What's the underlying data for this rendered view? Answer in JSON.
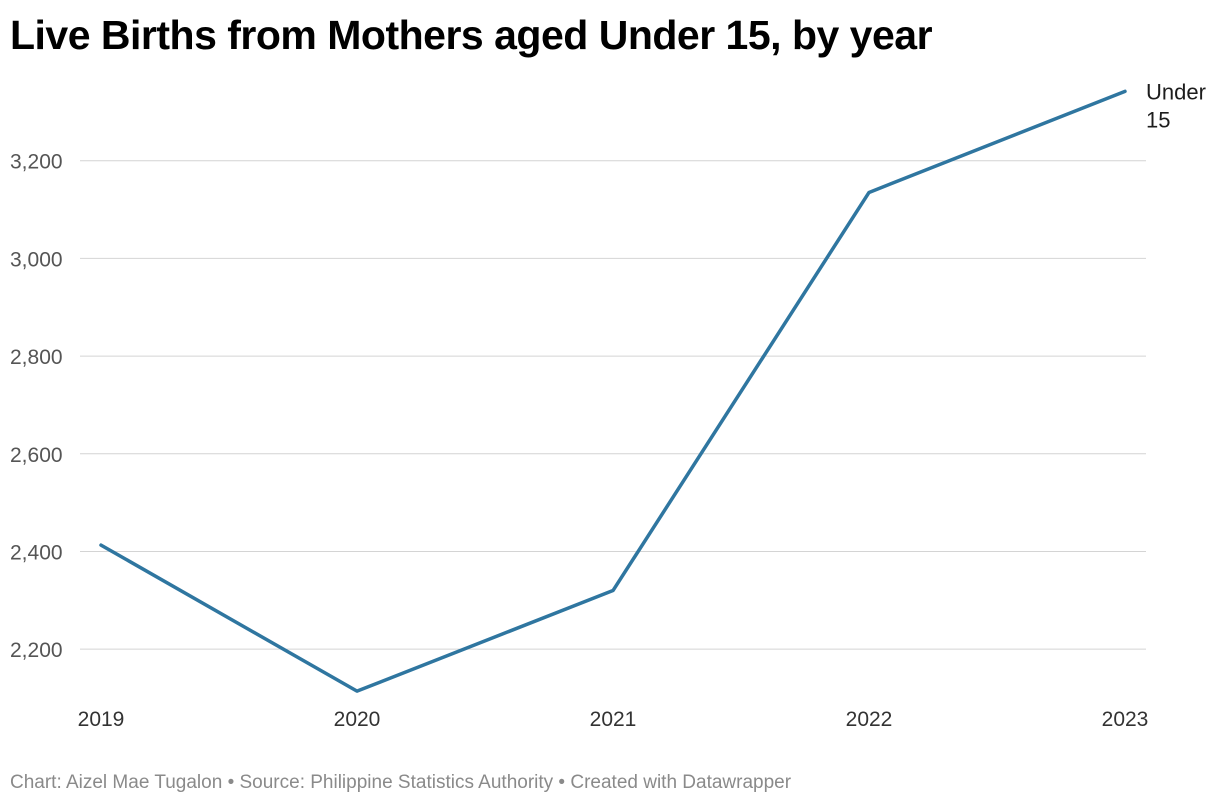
{
  "chart_data": {
    "type": "line",
    "title": "Live Births from Mothers aged Under 15, by year",
    "x": [
      "2019",
      "2020",
      "2021",
      "2022",
      "2023"
    ],
    "series": [
      {
        "name": "Under 15",
        "values": [
          2413,
          2114,
          2320,
          3135,
          3342
        ],
        "color": "#2f76a0"
      }
    ],
    "ylim": [
      2100,
      3400
    ],
    "yticks": [
      2200,
      2400,
      2600,
      2800,
      3000,
      3200
    ],
    "ytick_labels": [
      "2,200",
      "2,400",
      "2,600",
      "2,800",
      "3,000",
      "3,200"
    ],
    "xlabel": "",
    "ylabel": "",
    "grid": true,
    "legend": "direct label at line end (right)"
  },
  "footer": {
    "text": "Chart: Aizel Mae Tugalon • Source: Philippine Statistics Authority • Created with Datawrapper"
  }
}
